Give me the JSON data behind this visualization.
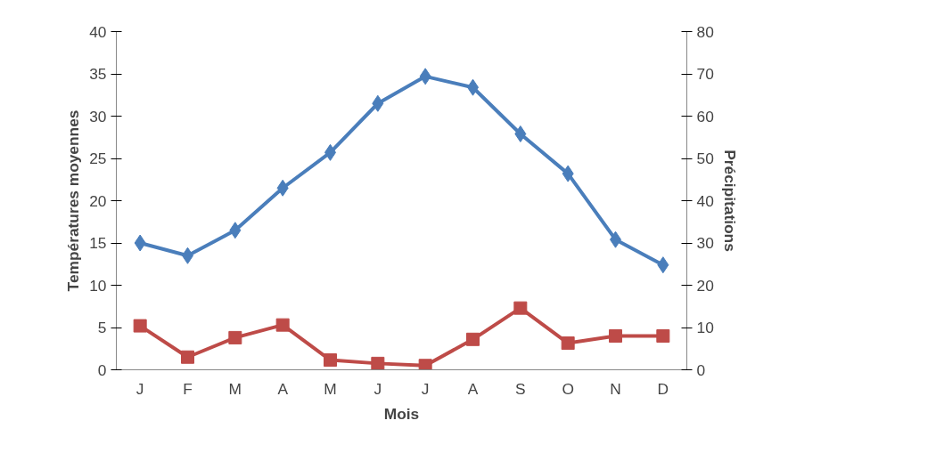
{
  "chart_data": {
    "type": "line",
    "xlabel": "Mois",
    "ylabel": "Températures moyennes",
    "y2label": "Précipitations",
    "categories": [
      "J",
      "F",
      "M",
      "A",
      "M",
      "J",
      "J",
      "A",
      "S",
      "O",
      "N",
      "D"
    ],
    "series": [
      {
        "color": "#4a7ebb",
        "marker": "diamond",
        "values": [
          15,
          13.5,
          16.5,
          21.5,
          25.7,
          31.5,
          34.7,
          33.4,
          27.9,
          23.2,
          15.4,
          12.4
        ]
      },
      {
        "color": "#be4b48",
        "marker": "square",
        "axis": "y2",
        "values": [
          10.4,
          3.0,
          7.6,
          10.6,
          2.3,
          1.5,
          1.0,
          7.2,
          14.6,
          6.3,
          8.0,
          8.0
        ]
      }
    ],
    "ylim": [
      0,
      40
    ],
    "yticks": [
      0,
      5,
      10,
      15,
      20,
      25,
      30,
      35,
      40
    ],
    "y2lim": [
      0,
      80
    ],
    "y2ticks": [
      0,
      10,
      20,
      30,
      40,
      50,
      60,
      70,
      80
    ],
    "grid": false,
    "line_style": "solid"
  }
}
